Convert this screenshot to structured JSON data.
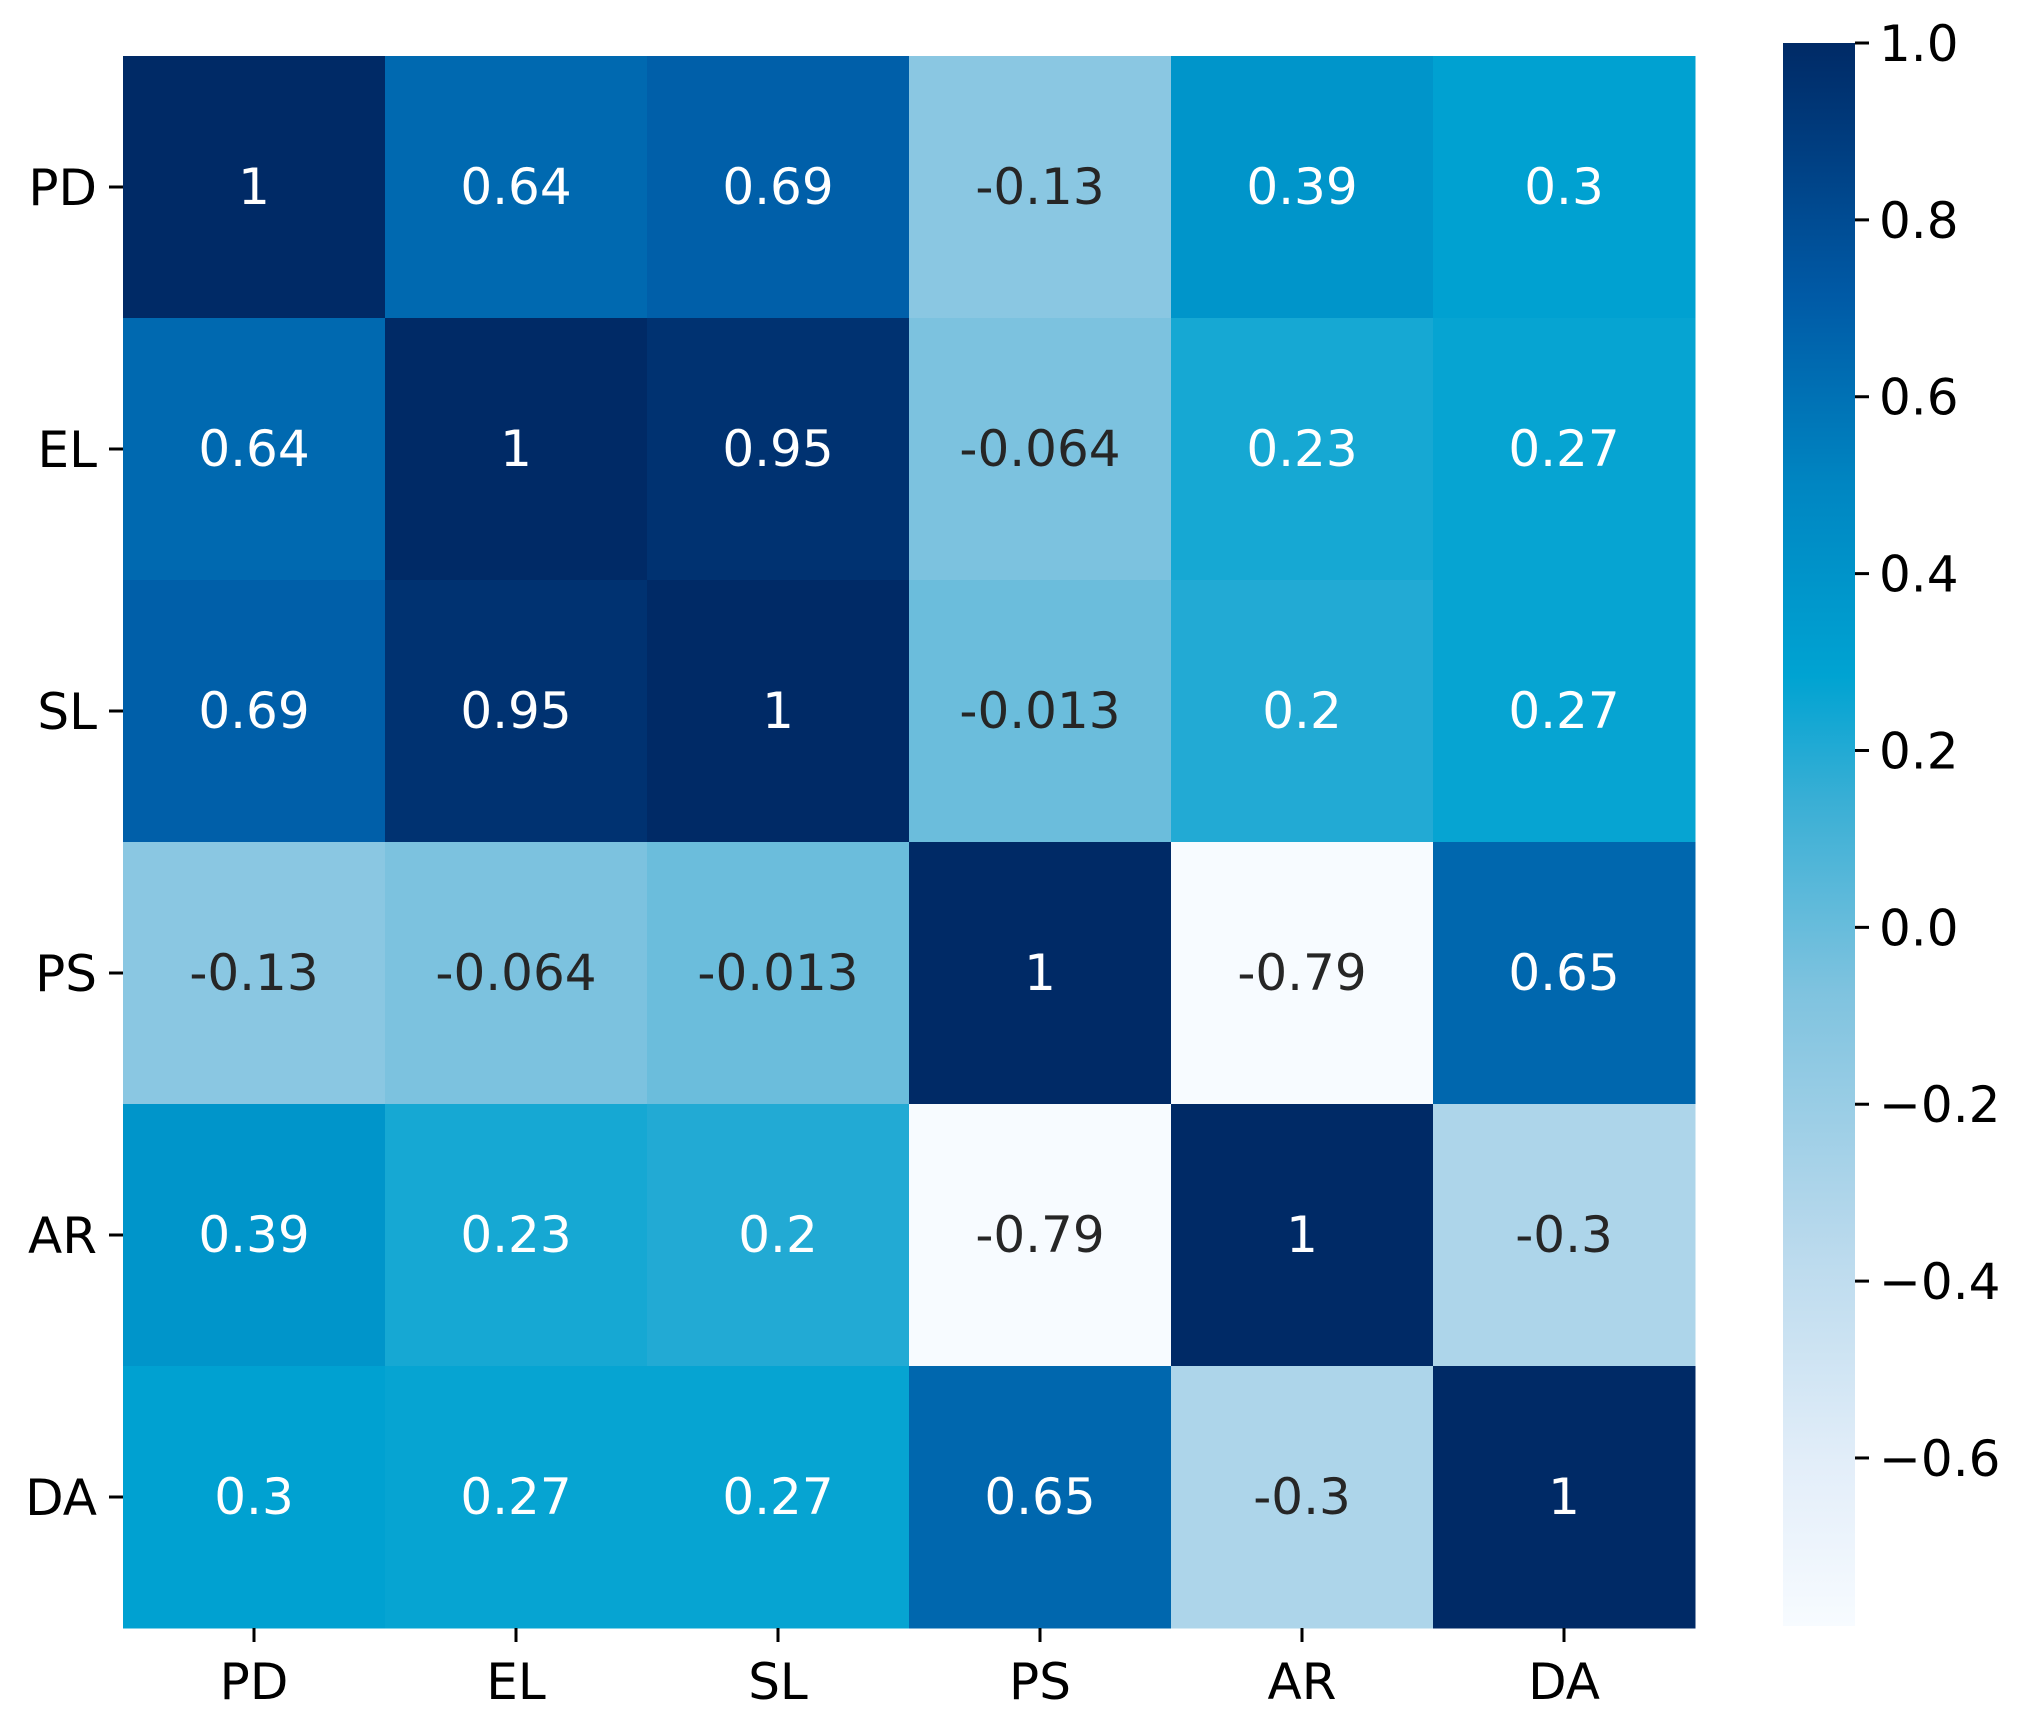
{
  "chart_data": {
    "type": "heatmap",
    "title": "",
    "xlabel": "",
    "ylabel": "",
    "x_labels": [
      "PD",
      "EL",
      "SL",
      "PS",
      "AR",
      "DA"
    ],
    "y_labels": [
      "PD",
      "EL",
      "SL",
      "PS",
      "AR",
      "DA"
    ],
    "values": [
      [
        1,
        0.64,
        0.69,
        -0.13,
        0.39,
        0.3
      ],
      [
        0.64,
        1,
        0.95,
        -0.064,
        0.23,
        0.27
      ],
      [
        0.69,
        0.95,
        1,
        -0.013,
        0.2,
        0.27
      ],
      [
        -0.13,
        -0.064,
        -0.013,
        1,
        -0.79,
        0.65
      ],
      [
        0.39,
        0.23,
        0.2,
        -0.79,
        1,
        -0.3
      ],
      [
        0.3,
        0.27,
        0.27,
        0.65,
        -0.3,
        1
      ]
    ],
    "annotations": [
      [
        "1",
        "0.64",
        "0.69",
        "-0.13",
        "0.39",
        "0.3"
      ],
      [
        "0.64",
        "1",
        "0.95",
        "-0.064",
        "0.23",
        "0.27"
      ],
      [
        "0.69",
        "0.95",
        "1",
        "-0.013",
        "0.2",
        "0.27"
      ],
      [
        "-0.13",
        "-0.064",
        "-0.013",
        "1",
        "-0.79",
        "0.65"
      ],
      [
        "0.39",
        "0.23",
        "0.2",
        "-0.79",
        "1",
        "-0.3"
      ],
      [
        "0.3",
        "0.27",
        "0.27",
        "0.65",
        "-0.3",
        "1"
      ]
    ],
    "colormap": "Blues",
    "color_range": [
      -0.79,
      1.0
    ],
    "colorbar": {
      "ticks": [
        1.0,
        0.8,
        0.6,
        0.4,
        0.2,
        0.0,
        -0.2,
        -0.4,
        -0.6
      ],
      "tick_labels": [
        "1.0",
        "0.8",
        "0.6",
        "0.4",
        "0.2",
        "0.0",
        "−0.2",
        "−0.4",
        "−0.6"
      ]
    },
    "colors": {
      "dark_text": "#262626",
      "light_text": "#ffffff",
      "axis": "#000000"
    }
  }
}
